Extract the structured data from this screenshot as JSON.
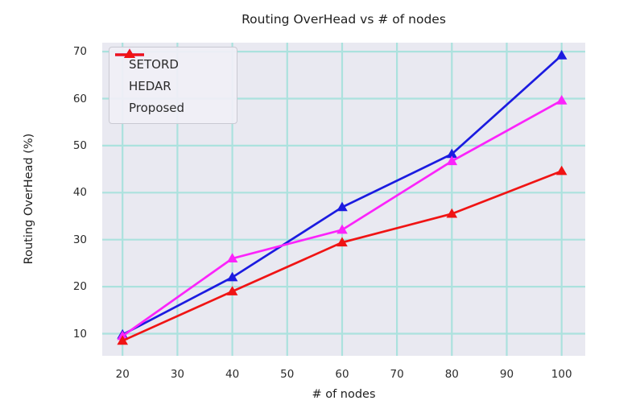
{
  "figure": {
    "title": "Routing OverHead vs # of nodes",
    "xlabel": "# of nodes",
    "ylabel": "Routing OverHead (%)"
  },
  "chart_data": {
    "type": "line",
    "title": "Routing OverHead vs # of nodes",
    "xlabel": "# of nodes",
    "ylabel": "Routing OverHead (%)",
    "x": [
      20,
      40,
      60,
      80,
      100
    ],
    "series": [
      {
        "name": "SETORD",
        "color": "#1b1be0",
        "marker": "triangle-up",
        "values": [
          9.8,
          22.0,
          36.9,
          48.2,
          69.2
        ]
      },
      {
        "name": "HEDAR",
        "color": "#fb23fb",
        "marker": "triangle-up",
        "values": [
          9.5,
          26.0,
          32.1,
          46.7,
          59.6
        ]
      },
      {
        "name": "Proposed",
        "color": "#f01414",
        "marker": "triangle-up",
        "values": [
          8.5,
          19.0,
          29.4,
          35.5,
          44.6
        ]
      }
    ],
    "xticks": [
      20,
      30,
      40,
      50,
      60,
      70,
      80,
      90,
      100
    ],
    "yticks": [
      10,
      20,
      30,
      40,
      50,
      60,
      70
    ],
    "xlim": [
      16.3,
      104.3
    ],
    "ylim": [
      5.3,
      71.9
    ],
    "grid": true,
    "grid_color": "#abe2de",
    "plot_bg": "#e9e9f1",
    "legend_position": "upper-left",
    "legend_labels": [
      "SETORD",
      "HEDAR",
      "Proposed"
    ]
  }
}
